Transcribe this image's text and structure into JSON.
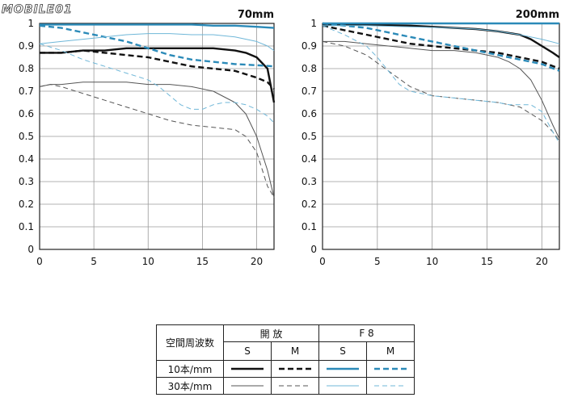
{
  "watermark": {
    "text": "MOBILE01"
  },
  "chart_data": [
    {
      "type": "line",
      "title": "70mm",
      "xlim": [
        0,
        21.6
      ],
      "ylim": [
        0,
        1
      ],
      "xticks": [
        0,
        5,
        10,
        15,
        20
      ],
      "yticks": [
        0,
        0.1,
        0.2,
        0.3,
        0.4,
        0.5,
        0.6,
        0.7,
        0.8,
        0.9,
        1
      ],
      "ytick_labels": [
        "0",
        "0.1",
        "0.2",
        "0.3",
        "0.4",
        "0.5",
        "0.6",
        "0.7",
        "0.8",
        "0.9",
        "1"
      ],
      "grid": true,
      "series": [
        {
          "key": "open_10_S",
          "x": [
            0,
            2,
            4,
            6,
            8,
            10,
            12,
            14,
            16,
            18,
            19,
            20,
            21,
            21.6
          ],
          "y": [
            0.87,
            0.87,
            0.88,
            0.88,
            0.89,
            0.89,
            0.89,
            0.89,
            0.89,
            0.88,
            0.87,
            0.85,
            0.8,
            0.65
          ]
        },
        {
          "key": "open_10_M",
          "x": [
            0,
            2,
            4,
            6,
            8,
            10,
            12,
            14,
            16,
            18,
            20,
            21,
            21.6
          ],
          "y": [
            0.87,
            0.87,
            0.88,
            0.87,
            0.86,
            0.85,
            0.83,
            0.81,
            0.8,
            0.79,
            0.76,
            0.74,
            0.71
          ]
        },
        {
          "key": "open_30_S",
          "x": [
            0,
            1,
            2,
            4,
            6,
            8,
            10,
            12,
            14,
            16,
            18,
            19,
            20,
            21,
            21.6
          ],
          "y": [
            0.72,
            0.73,
            0.73,
            0.74,
            0.74,
            0.74,
            0.73,
            0.73,
            0.72,
            0.7,
            0.65,
            0.6,
            0.5,
            0.35,
            0.23
          ]
        },
        {
          "key": "open_30_M",
          "x": [
            0,
            1,
            2,
            4,
            6,
            8,
            10,
            12,
            14,
            16,
            18,
            19,
            20,
            21,
            21.6
          ],
          "y": [
            0.72,
            0.73,
            0.72,
            0.69,
            0.66,
            0.63,
            0.6,
            0.57,
            0.55,
            0.54,
            0.53,
            0.5,
            0.43,
            0.28,
            0.23
          ]
        },
        {
          "key": "f8_10_S",
          "x": [
            0,
            4,
            8,
            10,
            12,
            14,
            16,
            18,
            20,
            21.6
          ],
          "y": [
            0.995,
            0.995,
            0.995,
            0.995,
            0.995,
            0.995,
            0.99,
            0.99,
            0.985,
            0.98
          ]
        },
        {
          "key": "f8_10_M",
          "x": [
            0,
            2,
            4,
            6,
            8,
            10,
            12,
            14,
            16,
            18,
            20,
            21.6
          ],
          "y": [
            0.99,
            0.98,
            0.96,
            0.94,
            0.92,
            0.89,
            0.86,
            0.84,
            0.83,
            0.82,
            0.815,
            0.81
          ]
        },
        {
          "key": "f8_30_S",
          "x": [
            0,
            2,
            4,
            6,
            8,
            10,
            12,
            14,
            16,
            18,
            20,
            21,
            21.6
          ],
          "y": [
            0.91,
            0.92,
            0.93,
            0.94,
            0.95,
            0.955,
            0.955,
            0.95,
            0.95,
            0.94,
            0.92,
            0.9,
            0.88
          ]
        },
        {
          "key": "f8_30_M",
          "x": [
            0,
            2,
            4,
            6,
            8,
            10,
            11,
            12,
            13,
            14,
            15,
            16,
            17,
            18,
            19,
            20,
            21,
            21.6
          ],
          "y": [
            0.91,
            0.88,
            0.84,
            0.81,
            0.78,
            0.75,
            0.72,
            0.68,
            0.64,
            0.62,
            0.62,
            0.64,
            0.65,
            0.65,
            0.64,
            0.62,
            0.59,
            0.56
          ]
        }
      ]
    },
    {
      "type": "line",
      "title": "200mm",
      "xlim": [
        0,
        21.6
      ],
      "ylim": [
        0,
        1
      ],
      "xticks": [
        0,
        5,
        10,
        15,
        20
      ],
      "yticks": [
        0,
        0.1,
        0.2,
        0.3,
        0.4,
        0.5,
        0.6,
        0.7,
        0.8,
        0.9,
        1
      ],
      "ytick_labels": [
        "0",
        "0.1",
        "0.2",
        "0.3",
        "0.4",
        "0.5",
        "0.6",
        "0.7",
        "0.8",
        "0.9",
        "1"
      ],
      "grid": true,
      "series": [
        {
          "key": "open_10_S",
          "x": [
            0,
            4,
            8,
            10,
            12,
            14,
            16,
            18,
            19,
            20,
            21,
            21.6
          ],
          "y": [
            0.995,
            0.995,
            0.99,
            0.985,
            0.98,
            0.975,
            0.965,
            0.95,
            0.93,
            0.9,
            0.87,
            0.85
          ]
        },
        {
          "key": "open_10_M",
          "x": [
            0,
            2,
            4,
            6,
            8,
            10,
            12,
            14,
            16,
            18,
            20,
            21.6
          ],
          "y": [
            0.99,
            0.97,
            0.95,
            0.93,
            0.91,
            0.9,
            0.89,
            0.88,
            0.87,
            0.85,
            0.83,
            0.8
          ]
        },
        {
          "key": "open_30_S",
          "x": [
            0,
            2,
            4,
            6,
            8,
            10,
            12,
            14,
            16,
            17,
            18,
            19,
            20,
            21,
            21.6
          ],
          "y": [
            0.92,
            0.92,
            0.91,
            0.9,
            0.89,
            0.88,
            0.88,
            0.87,
            0.85,
            0.83,
            0.8,
            0.75,
            0.66,
            0.55,
            0.49
          ]
        },
        {
          "key": "open_30_M",
          "x": [
            0,
            2,
            4,
            6,
            8,
            10,
            12,
            14,
            16,
            18,
            19,
            20,
            21,
            21.6
          ],
          "y": [
            0.92,
            0.9,
            0.86,
            0.79,
            0.72,
            0.68,
            0.67,
            0.66,
            0.65,
            0.63,
            0.6,
            0.57,
            0.52,
            0.48
          ]
        },
        {
          "key": "f8_10_S",
          "x": [
            0,
            5,
            10,
            15,
            20,
            21.6
          ],
          "y": [
            1.0,
            1.0,
            1.0,
            1.0,
            1.0,
            1.0
          ]
        },
        {
          "key": "f8_10_M",
          "x": [
            0,
            2,
            4,
            6,
            8,
            10,
            12,
            14,
            16,
            18,
            20,
            21.6
          ],
          "y": [
            1.0,
            0.99,
            0.98,
            0.96,
            0.94,
            0.92,
            0.9,
            0.88,
            0.86,
            0.84,
            0.82,
            0.79
          ]
        },
        {
          "key": "f8_30_S",
          "x": [
            0,
            4,
            8,
            12,
            14,
            16,
            18,
            20,
            21.6
          ],
          "y": [
            0.99,
            0.99,
            0.985,
            0.98,
            0.975,
            0.965,
            0.95,
            0.93,
            0.91
          ]
        },
        {
          "key": "f8_30_M",
          "x": [
            0,
            2,
            4,
            5,
            6,
            7,
            8,
            9,
            10,
            12,
            14,
            16,
            17,
            18,
            19,
            20,
            21,
            21.6
          ],
          "y": [
            0.99,
            0.95,
            0.9,
            0.85,
            0.79,
            0.73,
            0.7,
            0.69,
            0.68,
            0.67,
            0.66,
            0.65,
            0.64,
            0.64,
            0.64,
            0.61,
            0.52,
            0.47
          ]
        }
      ]
    }
  ],
  "legend": {
    "header_label": "空間周波数",
    "group_open": "開 放",
    "group_f8": "F 8",
    "col_s": "S",
    "col_m": "M",
    "row_10": "10本/mm",
    "row_30": "30本/mm"
  },
  "styles": {
    "open_10_S": {
      "color": "#111111",
      "width": 2.4,
      "dash": ""
    },
    "open_10_M": {
      "color": "#111111",
      "width": 2.4,
      "dash": "7,4"
    },
    "open_30_S": {
      "color": "#555555",
      "width": 1.0,
      "dash": ""
    },
    "open_30_M": {
      "color": "#555555",
      "width": 1.0,
      "dash": "6,4"
    },
    "f8_10_S": {
      "color": "#2b8ab8",
      "width": 2.4,
      "dash": ""
    },
    "f8_10_M": {
      "color": "#2b8ab8",
      "width": 2.4,
      "dash": "7,4"
    },
    "f8_30_S": {
      "color": "#6fb7d8",
      "width": 1.0,
      "dash": ""
    },
    "f8_30_M": {
      "color": "#6fb7d8",
      "width": 1.0,
      "dash": "6,4"
    }
  }
}
